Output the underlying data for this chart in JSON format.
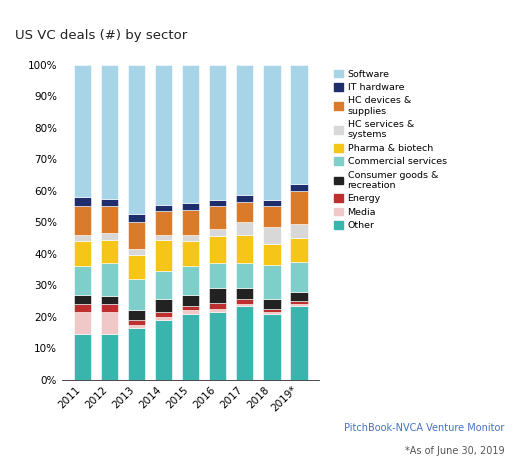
{
  "title": "US VC deals (#) by sector",
  "years": [
    "2011",
    "2012",
    "2013",
    "2014",
    "2015",
    "2016",
    "2017",
    "2018",
    "2019*"
  ],
  "segments": [
    {
      "label": "Other",
      "color": "#3ab5ad",
      "values": [
        14.5,
        14.5,
        16.5,
        19.0,
        21.0,
        21.5,
        23.5,
        21.0,
        23.5
      ]
    },
    {
      "label": "Media",
      "color": "#f0c8c8",
      "values": [
        7.0,
        7.0,
        1.0,
        1.0,
        1.0,
        1.0,
        0.5,
        0.5,
        0.5
      ]
    },
    {
      "label": "Energy",
      "color": "#be3030",
      "values": [
        2.5,
        2.5,
        1.5,
        1.5,
        1.5,
        2.0,
        1.5,
        1.0,
        1.0
      ]
    },
    {
      "label": "Consumer goods &\nrecreation",
      "color": "#222222",
      "values": [
        3.0,
        2.5,
        3.0,
        4.0,
        3.5,
        4.5,
        3.5,
        3.0,
        3.0
      ]
    },
    {
      "label": "Commercial services",
      "color": "#7ececa",
      "values": [
        9.0,
        10.5,
        10.0,
        9.0,
        9.0,
        8.0,
        8.0,
        11.0,
        9.5
      ]
    },
    {
      "label": "Pharma & biotech",
      "color": "#f5c518",
      "values": [
        8.0,
        7.5,
        7.5,
        10.0,
        8.0,
        8.5,
        9.0,
        6.5,
        7.5
      ]
    },
    {
      "label": "HC services &\nsystems",
      "color": "#d8d8d8",
      "values": [
        2.0,
        2.0,
        2.0,
        1.5,
        2.0,
        2.5,
        4.0,
        5.5,
        4.5
      ]
    },
    {
      "label": "HC devices &\nsupplies",
      "color": "#d97b2a",
      "values": [
        9.0,
        8.5,
        8.5,
        7.5,
        8.0,
        7.0,
        6.5,
        6.5,
        10.5
      ]
    },
    {
      "label": "IT hardware",
      "color": "#1e2d6b",
      "values": [
        3.0,
        2.5,
        2.5,
        2.0,
        2.0,
        2.0,
        2.0,
        2.0,
        2.0
      ]
    },
    {
      "label": "Software",
      "color": "#a8d4e8",
      "values": [
        42.0,
        42.5,
        47.5,
        44.5,
        44.0,
        43.0,
        41.5,
        43.0,
        38.0
      ]
    }
  ],
  "source_text": "PitchBook-NVCA Venture Monitor",
  "source_note": "*As of June 30, 2019",
  "source_color": "#4472c4",
  "background_color": "#ffffff",
  "figwidth": 5.15,
  "figheight": 4.63,
  "dpi": 100
}
